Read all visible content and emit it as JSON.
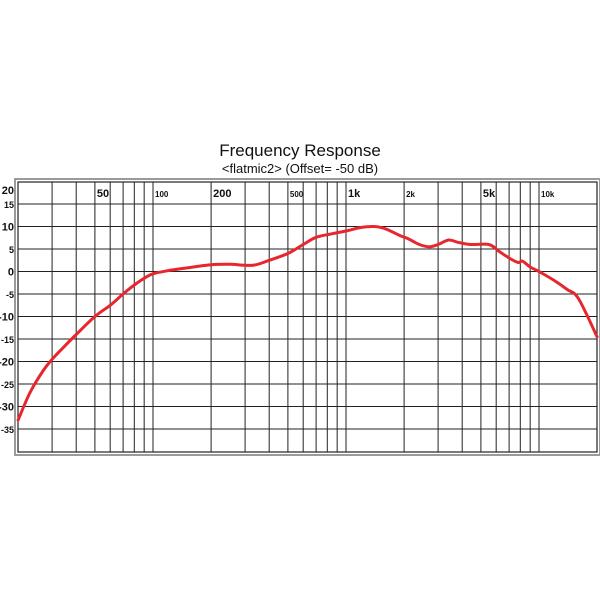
{
  "chart_data": {
    "type": "line",
    "title": "Frequency Response",
    "subtitle": "<flatmic2> (Offset= -50 dB)",
    "xlabel": "",
    "ylabel": "",
    "x_scale": "log",
    "xlim": [
      20,
      20000
    ],
    "ylim": [
      -40,
      20
    ],
    "grid": true,
    "legend": null,
    "x_tick_labels": [
      {
        "value": 50,
        "label": "50"
      },
      {
        "value": 100,
        "label": "100"
      },
      {
        "value": 200,
        "label": "200"
      },
      {
        "value": 500,
        "label": "500"
      },
      {
        "value": 1000,
        "label": "1k"
      },
      {
        "value": 2000,
        "label": "2k"
      },
      {
        "value": 5000,
        "label": "5k"
      },
      {
        "value": 10000,
        "label": "10k"
      }
    ],
    "x_gridlines": [
      30,
      40,
      50,
      60,
      70,
      80,
      90,
      100,
      200,
      300,
      400,
      500,
      600,
      700,
      800,
      900,
      1000,
      2000,
      3000,
      4000,
      5000,
      6000,
      7000,
      8000,
      9000,
      10000
    ],
    "y_tick_labels": [
      "20",
      "15",
      "10",
      "5",
      "0",
      "-5",
      "-10",
      "-15",
      "-20",
      "-25",
      "-30",
      "-35"
    ],
    "y_ticks": [
      20,
      15,
      10,
      5,
      0,
      -5,
      -10,
      -15,
      -20,
      -25,
      -30,
      -35
    ],
    "series": [
      {
        "name": "flatmic2",
        "color": "#e8262d",
        "x": [
          20,
          23,
          27,
          30,
          35,
          40,
          50,
          60,
          70,
          80,
          90,
          100,
          120,
          150,
          200,
          250,
          330,
          400,
          500,
          600,
          700,
          850,
          1000,
          1200,
          1400,
          1600,
          1900,
          2100,
          2400,
          2700,
          3000,
          3400,
          3800,
          4400,
          5500,
          6200,
          7000,
          7800,
          8200,
          9000,
          10000,
          12000,
          14000,
          16000,
          20000
        ],
        "values": [
          -33,
          -27,
          -22,
          -19.5,
          -16.5,
          -14,
          -10,
          -7.5,
          -5,
          -3,
          -1.5,
          -0.5,
          0.2,
          0.8,
          1.5,
          1.6,
          1.4,
          2.5,
          4,
          6,
          7.6,
          8.4,
          9,
          9.8,
          10,
          9.5,
          8,
          7.3,
          6,
          5.5,
          6,
          7,
          6.5,
          6,
          6,
          4.5,
          3,
          2,
          2.3,
          1,
          0,
          -2,
          -4,
          -6,
          -14.5
        ]
      }
    ]
  },
  "colors": {
    "curve": "#e8262d",
    "grid": "#222222",
    "frame_outer": "#9a9a9a",
    "background": "#ffffff"
  }
}
